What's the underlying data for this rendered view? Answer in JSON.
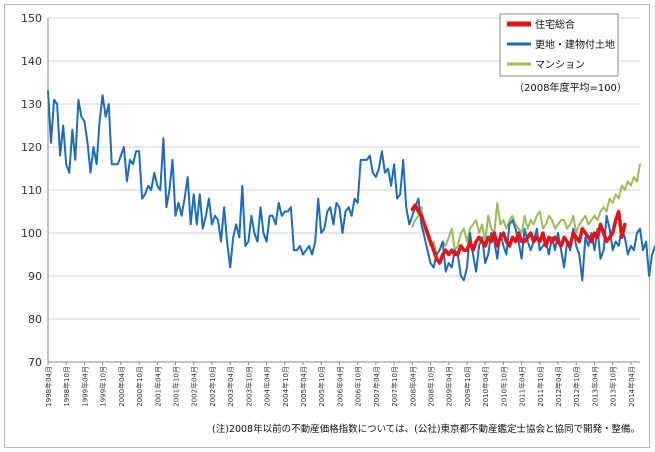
{
  "chart_data": {
    "type": "line",
    "title": "",
    "xlabel": "",
    "ylabel": "",
    "ylim": [
      70,
      150
    ],
    "yticks": [
      70,
      80,
      90,
      100,
      110,
      120,
      130,
      140,
      150
    ],
    "grid": true,
    "legend_position": "top-right",
    "legend_note": "（2008年度平均=100）",
    "footnote": "(注)2008年以前の不動産価格指数については、(公社)東京都不動産鑑定士協会と協同で開発・整備。",
    "x_start": "1998-04",
    "x_end": "2014-07",
    "x_tick_labels": [
      "1998年04月",
      "1998年10月",
      "1999年04月",
      "1999年10月",
      "2000年04月",
      "2000年10月",
      "2001年04月",
      "2001年10月",
      "2002年04月",
      "2002年10月",
      "2003年04月",
      "2003年10月",
      "2004年04月",
      "2004年10月",
      "2005年04月",
      "2005年10月",
      "2006年04月",
      "2006年10月",
      "2007年04月",
      "2007年10月",
      "2008年04月",
      "2008年10月",
      "2009年04月",
      "2009年10月",
      "2010年04月",
      "2010年10月",
      "2011年04月",
      "2011年10月",
      "2012年04月",
      "2012年10月",
      "2013年04月",
      "2013年10月",
      "2014年04月"
    ],
    "series": [
      {
        "name": "住宅総合",
        "color": "#e3121b",
        "start": "2008-04",
        "values": [
          105.5,
          106.5,
          105,
          104,
          102,
          100,
          98,
          96,
          94,
          93,
          95,
          96,
          95,
          96,
          95,
          95,
          97,
          96,
          96,
          98,
          96,
          98,
          99,
          98,
          97,
          99,
          98,
          100,
          97,
          99,
          100,
          98,
          97,
          99,
          98,
          100,
          98,
          98,
          99,
          100,
          98,
          99,
          98,
          100,
          97,
          99,
          98,
          99,
          98,
          97,
          99,
          98,
          97,
          100,
          99,
          98,
          101,
          100,
          99,
          98,
          100,
          99,
          102,
          100,
          98,
          99,
          100,
          103,
          105,
          99,
          102
        ]
      },
      {
        "name": "更地・建物付土地",
        "color": "#1f6bb8",
        "values": [
          133,
          121,
          131,
          130,
          118,
          125,
          116,
          114,
          124,
          117,
          131,
          127,
          126,
          121,
          114,
          120,
          116,
          126,
          132,
          127,
          130,
          116,
          116,
          116,
          118,
          120,
          112,
          117,
          116,
          119,
          119,
          108,
          109,
          111,
          110,
          114,
          111,
          110,
          122,
          106,
          110,
          117,
          104,
          107,
          104,
          108,
          113,
          102,
          109,
          102,
          109,
          101,
          104,
          108,
          102,
          104,
          103,
          98,
          106,
          98,
          92,
          99,
          102,
          99,
          111,
          97,
          98,
          104,
          100,
          98,
          106,
          100,
          98,
          104,
          104,
          102,
          107,
          104,
          105,
          105,
          106,
          96,
          96,
          97,
          95,
          96,
          97,
          95,
          98,
          108,
          100,
          101,
          105,
          106,
          102,
          107,
          106,
          100,
          105,
          106,
          104,
          108,
          107,
          117,
          117,
          117,
          118,
          114,
          113,
          115,
          119,
          114,
          115,
          111,
          116,
          108,
          109,
          117,
          106,
          102,
          104,
          106,
          108,
          102,
          99,
          96,
          93,
          92,
          95,
          96,
          98,
          91,
          93,
          92,
          96,
          95,
          90,
          89,
          92,
          100,
          95,
          91,
          97,
          99,
          93,
          95,
          100,
          98,
          94,
          100,
          97,
          95,
          102,
          103,
          101,
          98,
          94,
          101,
          98,
          96,
          98,
          101,
          96,
          97,
          98,
          95,
          99,
          96,
          100,
          96,
          92,
          98,
          96,
          101,
          97,
          95,
          89,
          99,
          97,
          100,
          96,
          101,
          94,
          96,
          104,
          101,
          96,
          98,
          97,
          101,
          99,
          95,
          97,
          96,
          100,
          101,
          96,
          98,
          90,
          95,
          97
        ]
      },
      {
        "name": "マンション",
        "color": "#9bbb59",
        "start": "2008-04",
        "values": [
          101.5,
          103,
          104,
          106,
          101,
          99,
          97,
          98,
          95,
          96,
          98,
          97,
          99,
          101,
          96,
          97,
          100,
          101,
          98,
          101,
          102,
          103,
          100,
          102,
          98,
          104,
          101,
          100,
          107,
          102,
          103,
          101,
          103,
          104,
          102,
          101,
          100,
          104,
          101,
          103,
          102,
          104,
          105,
          101,
          102,
          104,
          103,
          101,
          102,
          103,
          103,
          101,
          102,
          104,
          100,
          102,
          103,
          104,
          102,
          103,
          104,
          103,
          105,
          106,
          105,
          108,
          107,
          109,
          108,
          111,
          110,
          112,
          111,
          113,
          112,
          116
        ]
      }
    ]
  }
}
